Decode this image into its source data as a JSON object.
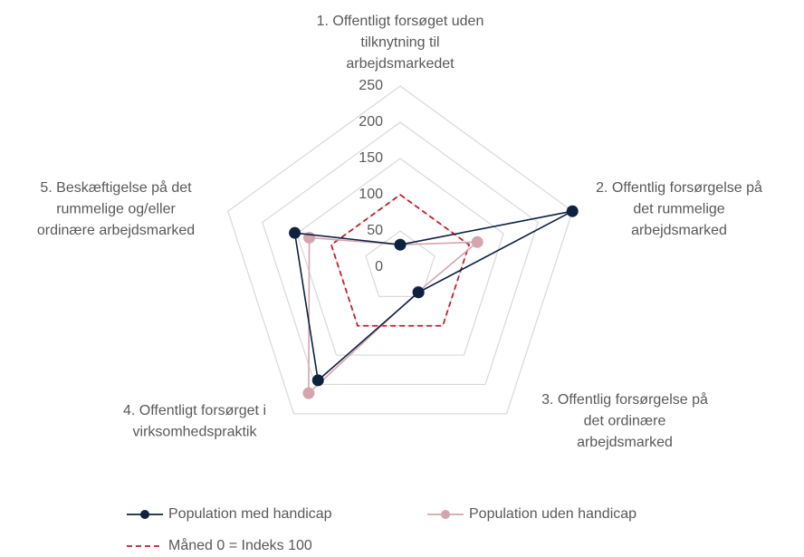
{
  "chart_data": {
    "type": "radar",
    "categories": [
      [
        "1. Offentligt forsøget uden",
        "tilknytning til",
        "arbejdsmarkedet"
      ],
      [
        "2. Offentlig forsørgelse på",
        "det rummelige",
        "arbejdsmarked"
      ],
      [
        "3. Offentlig forsørgelse på",
        "det ordinære",
        "arbejdsmarked"
      ],
      [
        "4. Offentligt forsørget i",
        "virksomhedspraktik"
      ],
      [
        "5. Beskæftigelse på det",
        "rummelige og/eller",
        "ordinære arbejdsmarked"
      ]
    ],
    "series": [
      {
        "name": "Population med handicap",
        "color": "#0d2240",
        "marker": true,
        "dashed": false,
        "values": [
          31,
          250,
          43,
          193,
          153
        ]
      },
      {
        "name": "Population uden handicap",
        "color": "#d4a5ad",
        "marker": true,
        "dashed": false,
        "values": [
          31,
          112,
          42,
          215,
          132
        ]
      },
      {
        "name": "Måned 0 = Indeks 100",
        "color": "#c0202a",
        "marker": false,
        "dashed": true,
        "values": [
          100,
          100,
          100,
          100,
          100
        ]
      }
    ],
    "rlim": [
      0,
      250
    ],
    "rticks": [
      0,
      50,
      100,
      150,
      200,
      250
    ],
    "grid": true
  }
}
